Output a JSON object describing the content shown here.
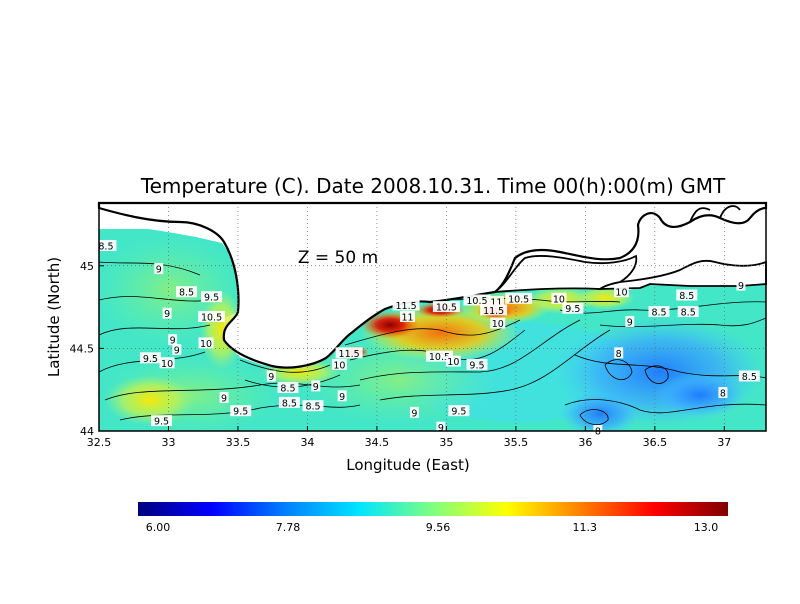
{
  "chart_data": {
    "type": "heatmap",
    "title": "Temperature (C). Date 2008.10.31. Time 00(h):00(m) GMT",
    "annotation": "Z  =  50  m",
    "xlabel": "Longitude (East)",
    "ylabel": "Latitude (North)",
    "xlim": [
      32.5,
      37.3
    ],
    "ylim": [
      44.0,
      45.38
    ],
    "x_ticks": [
      "32.5",
      "33",
      "33.5",
      "34",
      "34.5",
      "35",
      "35.5",
      "36",
      "36.5",
      "37"
    ],
    "x_tick_values": [
      32.5,
      33,
      33.5,
      34,
      34.5,
      35,
      35.5,
      36,
      36.5,
      37
    ],
    "y_ticks": [
      "44",
      "44.5",
      "45"
    ],
    "y_tick_values": [
      44,
      44.5,
      45
    ],
    "grid": true,
    "colorbar": {
      "min": 6.0,
      "max": 13.0,
      "tick_labels": [
        "6.00",
        "7.78",
        "9.56",
        "11.3",
        "13.0"
      ],
      "tick_values": [
        6.0,
        7.78,
        9.56,
        11.3,
        13.0
      ],
      "colors": [
        "#00007f",
        "#0000ff",
        "#0080ff",
        "#00e5ff",
        "#7fff7f",
        "#ffff00",
        "#ff8000",
        "#ff0000",
        "#7f0000"
      ]
    },
    "contour_labels": [
      {
        "text": "8.5",
        "lon": 32.55,
        "lat": 45.12
      },
      {
        "text": "9",
        "lon": 32.93,
        "lat": 44.98
      },
      {
        "text": "8.5",
        "lon": 33.13,
        "lat": 44.84
      },
      {
        "text": "9.5",
        "lon": 33.31,
        "lat": 44.81
      },
      {
        "text": "9",
        "lon": 32.99,
        "lat": 44.71
      },
      {
        "text": "10.5",
        "lon": 33.31,
        "lat": 44.69
      },
      {
        "text": "9",
        "lon": 33.03,
        "lat": 44.55
      },
      {
        "text": "10",
        "lon": 33.27,
        "lat": 44.53
      },
      {
        "text": "9",
        "lon": 33.06,
        "lat": 44.49
      },
      {
        "text": "9.5",
        "lon": 32.87,
        "lat": 44.44
      },
      {
        "text": "10",
        "lon": 32.99,
        "lat": 44.41
      },
      {
        "text": "9",
        "lon": 33.74,
        "lat": 44.33
      },
      {
        "text": "8.5",
        "lon": 33.86,
        "lat": 44.26
      },
      {
        "text": "9",
        "lon": 34.06,
        "lat": 44.27
      },
      {
        "text": "9",
        "lon": 33.4,
        "lat": 44.2
      },
      {
        "text": "8.5",
        "lon": 33.87,
        "lat": 44.17
      },
      {
        "text": "8.5",
        "lon": 34.04,
        "lat": 44.15
      },
      {
        "text": "9.5",
        "lon": 33.52,
        "lat": 44.12
      },
      {
        "text": "9.5",
        "lon": 32.95,
        "lat": 44.06
      },
      {
        "text": "9",
        "lon": 34.25,
        "lat": 44.21
      },
      {
        "text": "10",
        "lon": 34.23,
        "lat": 44.4
      },
      {
        "text": "11.5",
        "lon": 34.3,
        "lat": 44.47
      },
      {
        "text": "11.5",
        "lon": 34.71,
        "lat": 44.76
      },
      {
        "text": "11",
        "lon": 34.72,
        "lat": 44.69
      },
      {
        "text": "10.5",
        "lon": 35.0,
        "lat": 44.75
      },
      {
        "text": "10.5",
        "lon": 35.22,
        "lat": 44.79
      },
      {
        "text": "11",
        "lon": 35.36,
        "lat": 44.78
      },
      {
        "text": "10.5",
        "lon": 35.52,
        "lat": 44.8
      },
      {
        "text": "11.5",
        "lon": 35.34,
        "lat": 44.73
      },
      {
        "text": "10",
        "lon": 35.81,
        "lat": 44.8
      },
      {
        "text": "9.5",
        "lon": 35.91,
        "lat": 44.74
      },
      {
        "text": "10",
        "lon": 35.37,
        "lat": 44.65
      },
      {
        "text": "10.5",
        "lon": 34.95,
        "lat": 44.45
      },
      {
        "text": "10",
        "lon": 35.05,
        "lat": 44.42
      },
      {
        "text": "9.5",
        "lon": 35.22,
        "lat": 44.4
      },
      {
        "text": "9",
        "lon": 34.77,
        "lat": 44.11
      },
      {
        "text": "9.5",
        "lon": 35.09,
        "lat": 44.12
      },
      {
        "text": "9",
        "lon": 34.96,
        "lat": 44.02
      },
      {
        "text": "10",
        "lon": 36.26,
        "lat": 44.84
      },
      {
        "text": "9",
        "lon": 36.32,
        "lat": 44.66
      },
      {
        "text": "8.5",
        "lon": 36.53,
        "lat": 44.72
      },
      {
        "text": "8.5",
        "lon": 36.73,
        "lat": 44.82
      },
      {
        "text": "8.5",
        "lon": 36.74,
        "lat": 44.72
      },
      {
        "text": "9",
        "lon": 37.12,
        "lat": 44.88
      },
      {
        "text": "8",
        "lon": 36.24,
        "lat": 44.47
      },
      {
        "text": "8.5",
        "lon": 37.18,
        "lat": 44.33
      },
      {
        "text": "8",
        "lon": 36.99,
        "lat": 44.23
      },
      {
        "text": "8",
        "lon": 36.09,
        "lat": 44.0
      }
    ]
  }
}
